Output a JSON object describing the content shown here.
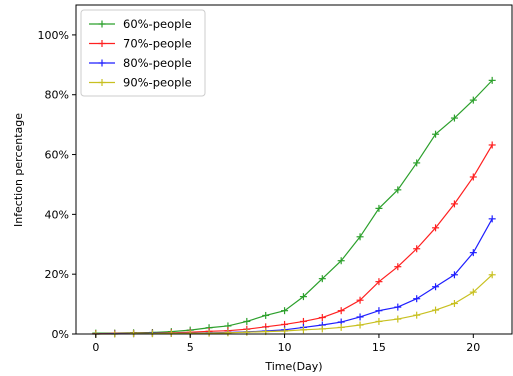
{
  "chart_data": {
    "type": "line",
    "title": "",
    "xlabel": "Time(Day)",
    "ylabel": "Infection percentage",
    "xlim": [
      -1.05,
      22.05
    ],
    "ylim": [
      0,
      1.1
    ],
    "x_ticks": [
      0,
      5,
      10,
      15,
      20
    ],
    "x_tick_labels": [
      "0",
      "5",
      "10",
      "15",
      "20"
    ],
    "y_ticks": [
      0,
      0.2,
      0.4,
      0.6,
      0.8,
      1.0
    ],
    "y_tick_labels": [
      "0%",
      "20%",
      "40%",
      "60%",
      "80%",
      "100%"
    ],
    "grid": false,
    "legend_position": "top-left",
    "x": [
      0,
      1,
      2,
      3,
      4,
      5,
      6,
      7,
      8,
      9,
      10,
      11,
      12,
      13,
      14,
      15,
      16,
      17,
      18,
      19,
      20,
      21
    ],
    "series": [
      {
        "name": "60%-people",
        "color": "#2ca02c",
        "values": [
          0.003,
          0.003,
          0.004,
          0.005,
          0.008,
          0.013,
          0.021,
          0.027,
          0.042,
          0.062,
          0.078,
          0.125,
          0.185,
          0.245,
          0.325,
          0.42,
          0.482,
          0.572,
          0.668,
          0.722,
          0.782,
          0.848
        ]
      },
      {
        "name": "70%-people",
        "color": "#ff2020",
        "values": [
          0.001,
          0.002,
          0.002,
          0.003,
          0.004,
          0.006,
          0.009,
          0.011,
          0.016,
          0.024,
          0.032,
          0.042,
          0.055,
          0.078,
          0.113,
          0.175,
          0.225,
          0.285,
          0.355,
          0.435,
          0.525,
          0.632
        ]
      },
      {
        "name": "80%-people",
        "color": "#1f1fff",
        "values": [
          0.0,
          0.001,
          0.001,
          0.002,
          0.002,
          0.003,
          0.004,
          0.005,
          0.007,
          0.01,
          0.014,
          0.022,
          0.03,
          0.04,
          0.057,
          0.078,
          0.09,
          0.118,
          0.158,
          0.198,
          0.272,
          0.385
        ]
      },
      {
        "name": "90%-people",
        "color": "#c8c020",
        "values": [
          0.0,
          0.0,
          0.001,
          0.001,
          0.002,
          0.002,
          0.003,
          0.004,
          0.006,
          0.008,
          0.01,
          0.014,
          0.017,
          0.022,
          0.03,
          0.042,
          0.05,
          0.063,
          0.08,
          0.102,
          0.14,
          0.198
        ]
      }
    ]
  }
}
